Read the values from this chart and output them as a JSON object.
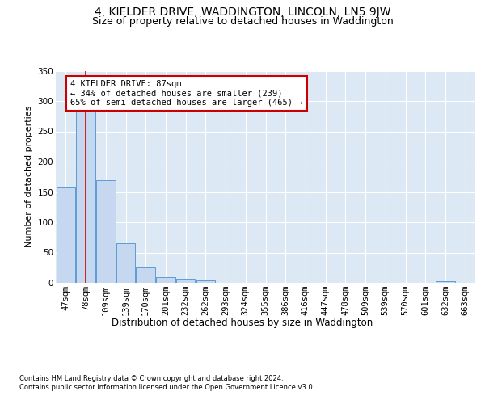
{
  "title_line1": "4, KIELDER DRIVE, WADDINGTON, LINCOLN, LN5 9JW",
  "title_line2": "Size of property relative to detached houses in Waddington",
  "xlabel": "Distribution of detached houses by size in Waddington",
  "ylabel": "Number of detached properties",
  "categories": [
    "47sqm",
    "78sqm",
    "109sqm",
    "139sqm",
    "170sqm",
    "201sqm",
    "232sqm",
    "262sqm",
    "293sqm",
    "324sqm",
    "355sqm",
    "386sqm",
    "416sqm",
    "447sqm",
    "478sqm",
    "509sqm",
    "539sqm",
    "570sqm",
    "601sqm",
    "632sqm",
    "663sqm"
  ],
  "values": [
    157,
    287,
    170,
    65,
    26,
    9,
    7,
    4,
    0,
    0,
    0,
    0,
    0,
    0,
    0,
    0,
    0,
    0,
    0,
    3,
    0
  ],
  "bar_color": "#c5d8f0",
  "bar_edge_color": "#5b9bd5",
  "vline_x": 1,
  "vline_color": "#cc0000",
  "annotation_text": "4 KIELDER DRIVE: 87sqm\n← 34% of detached houses are smaller (239)\n65% of semi-detached houses are larger (465) →",
  "annotation_box_color": "white",
  "annotation_box_edge_color": "#cc0000",
  "ylim": [
    0,
    350
  ],
  "yticks": [
    0,
    50,
    100,
    150,
    200,
    250,
    300,
    350
  ],
  "footnote_line1": "Contains HM Land Registry data © Crown copyright and database right 2024.",
  "footnote_line2": "Contains public sector information licensed under the Open Government Licence v3.0.",
  "plot_bg_color": "#dce9f5",
  "title1_fontsize": 10,
  "title2_fontsize": 9,
  "xlabel_fontsize": 8.5,
  "ylabel_fontsize": 8,
  "tick_fontsize": 7.5,
  "footnote_fontsize": 6,
  "annotation_fontsize": 7.5
}
